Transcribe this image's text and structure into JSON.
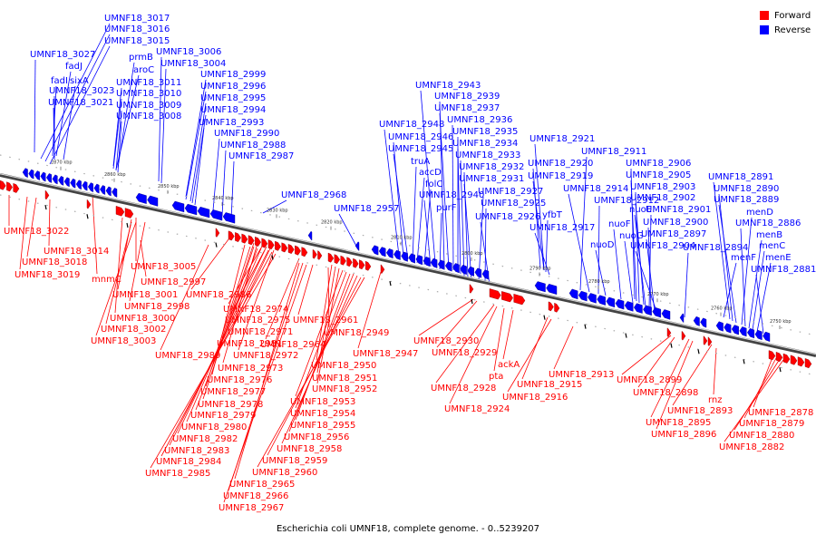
{
  "caption": "Escherichia coli UMNF18, complete genome. - 0..5239207",
  "legend": {
    "placement": "top-right",
    "items": [
      {
        "label": "Forward",
        "color": "#ff0000"
      },
      {
        "label": "Reverse",
        "color": "#0000ff"
      }
    ]
  },
  "colors": {
    "forward": "#ff0000",
    "reverse": "#0000ff",
    "backbone": "#555555"
  },
  "ticks": [
    "2870 kbp",
    "2860 kbp",
    "2850 kbp",
    "2840 kbp",
    "2830 kbp",
    "2820 kbp",
    "2810 kbp",
    "2800 kbp",
    "2790 kbp",
    "2780 kbp",
    "2770 kbp",
    "2760 kbp",
    "2750 kbp"
  ],
  "reverse_labels": [
    "UMNF18_3017",
    "UMNF18_3016",
    "UMNF18_3015",
    "prmB",
    "UMNF18_3006",
    "UMNF18_3027",
    "fadJ",
    "aroC",
    "UMNF18_3004",
    "UMNF18_2999",
    "fadI",
    "sixA",
    "UMNF18_3011",
    "UMNF18_3023",
    "UMNF18_3010",
    "UMNF18_2996",
    "UMNF18_3021",
    "UMNF18_2995",
    "UMNF18_3009",
    "UMNF18_2994",
    "UMNF18_3008",
    "UMNF18_2993",
    "UMNF18_2990",
    "UMNF18_2988",
    "UMNF18_2987",
    "UMNF18_2968",
    "UMNF18_2957",
    "UMNF18_2943",
    "UMNF18_2939",
    "UMNF18_2937",
    "UMNF18_2936",
    "UMNF18_2948",
    "UMNF18_2935",
    "UMNF18_2946",
    "UMNF18_2934",
    "UMNF18_2945",
    "UMNF18_2933",
    "truA",
    "UMNF18_2932",
    "accD",
    "UMNF18_2931",
    "folC",
    "UMNF18_2940",
    "UMNF18_2927",
    "purF",
    "UMNF18_2925",
    "UMNF18_2926",
    "UMNF18_2921",
    "UMNF18_2920",
    "UMNF18_2919",
    "yfbT",
    "UMNF18_2917",
    "UMNF18_2911",
    "UMNF18_2906",
    "UMNF18_2905",
    "UMNF18_2914",
    "UMNF18_2903",
    "UMNF18_2912",
    "UMNF18_2902",
    "nuoE",
    "UMNF18_2901",
    "nuoF",
    "UMNF18_2900",
    "nuoG",
    "UMNF18_2897",
    "nuoD",
    "UMNF18_2904",
    "UMNF18_2894",
    "UMNF18_2891",
    "UMNF18_2890",
    "UMNF18_2889",
    "menD",
    "UMNF18_2886",
    "menB",
    "menF",
    "menC",
    "menE",
    "UMNF18_2881"
  ],
  "forward_labels": [
    "UMNF18_3022",
    "UMNF18_3014",
    "UMNF18_3018",
    "UMNF18_3019",
    "UMNF18_3005",
    "mnmC",
    "UMNF18_2997",
    "UMNF18_3001",
    "UMNF18_2986",
    "UMNF18_2998",
    "UMNF18_3000",
    "UMNF18_3002",
    "UMNF18_3003",
    "UMNF18_2974",
    "UMNF18_2975",
    "UMNF18_2971",
    "UMNF18_2961",
    "UMNF18_2949",
    "UMNF18_2981",
    "UMNF18_2964",
    "UMNF18_2989",
    "UMNF18_2972",
    "UMNF18_2947",
    "UMNF18_2973",
    "UMNF18_2950",
    "UMNF18_2976",
    "UMNF18_2951",
    "UMNF18_2977",
    "UMNF18_2952",
    "UMNF18_2978",
    "UMNF18_2953",
    "UMNF18_2979",
    "UMNF18_2954",
    "UMNF18_2980",
    "UMNF18_2955",
    "UMNF18_2982",
    "UMNF18_2956",
    "UMNF18_2983",
    "UMNF18_2958",
    "UMNF18_2984",
    "UMNF18_2959",
    "UMNF18_2985",
    "UMNF18_2960",
    "UMNF18_2965",
    "UMNF18_2966",
    "UMNF18_2967",
    "UMNF18_2930",
    "UMNF18_2929",
    "ackA",
    "pta",
    "UMNF18_2928",
    "UMNF18_2924",
    "UMNF18_2915",
    "UMNF18_2916",
    "UMNF18_2913",
    "UMNF18_2899",
    "UMNF18_2898",
    "UMNF18_2895",
    "UMNF18_2893",
    "UMNF18_2896",
    "rnz",
    "UMNF18_2878",
    "UMNF18_2879",
    "UMNF18_2880",
    "UMNF18_2882"
  ]
}
